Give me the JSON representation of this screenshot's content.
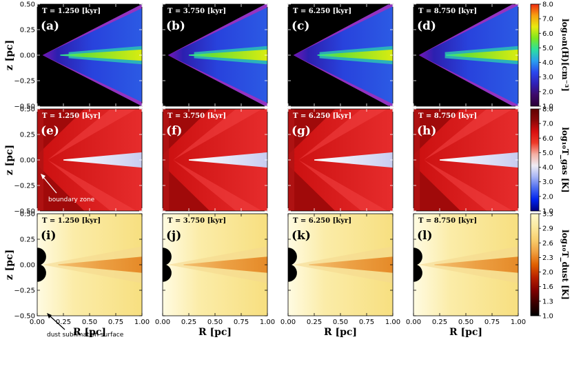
{
  "chart_data": {
    "type": "heatmap",
    "description_rows": [
      "log n(H)",
      "log T_gas",
      "log T_dust"
    ],
    "xlabel": "R [pc]",
    "ylabel": "z [pc]",
    "xlim": [
      0.0,
      1.0
    ],
    "ylim": [
      -0.5,
      0.5
    ],
    "xticks": [
      "0.00",
      "0.25",
      "0.50",
      "0.75",
      "1.00"
    ],
    "yticks": [
      "0.50",
      "0.25",
      "0.00",
      "−0.25",
      "−0.50"
    ],
    "times": [
      "T =  1.250 [kyr]",
      "T =  3.750 [kyr]",
      "T =  6.250 [kyr]",
      "T =  8.750 [kyr]"
    ],
    "panel_labels": [
      [
        "(a)",
        "(b)",
        "(c)",
        "(d)"
      ],
      [
        "(e)",
        "(f)",
        "(g)",
        "(h)"
      ],
      [
        "(i)",
        "(j)",
        "(k)",
        "(l)"
      ]
    ],
    "colorbars": [
      {
        "label": "log₁₀n(H)[cm⁻³]",
        "ticks": [
          "8.0",
          "7.0",
          "6.0",
          "5.0",
          "4.0",
          "3.0",
          "2.0",
          "1.0"
        ],
        "range": [
          1.0,
          8.0
        ],
        "colors": [
          "#2a0035",
          "#3d0a6a",
          "#2f21b8",
          "#2a48ee",
          "#2aa0ee",
          "#2ce09e",
          "#7ee81e",
          "#e8ea10",
          "#f7a010",
          "#ee2a10"
        ]
      },
      {
        "label": "log₁₀T_gas [K]",
        "ticks": [
          "8.0",
          "7.0",
          "6.0",
          "5.0",
          "4.0",
          "3.0",
          "2.0",
          "1.0"
        ],
        "range": [
          1.0,
          8.0
        ],
        "colors": [
          "#000080",
          "#0022ee",
          "#4a6af0",
          "#a6b4f4",
          "#f0ecf4",
          "#f4b0a4",
          "#ee3a28",
          "#d81010",
          "#8a0808",
          "#600000"
        ]
      },
      {
        "label": "log₁₀T_dust [K]",
        "ticks": [
          "3.3",
          "2.9",
          "2.6",
          "2.3",
          "2.0",
          "1.6",
          "1.3",
          "1.0"
        ],
        "range": [
          1.0,
          3.3
        ],
        "colors": [
          "#000000",
          "#3a0000",
          "#800000",
          "#b82000",
          "#e06000",
          "#f0a040",
          "#f8d070",
          "#fbeaa0",
          "#fff8cc"
        ]
      }
    ],
    "annotations": [
      {
        "panel": "(e)",
        "text": "boundary zone"
      },
      {
        "panel": "(i)",
        "text": "dust sublimation surface"
      }
    ]
  }
}
